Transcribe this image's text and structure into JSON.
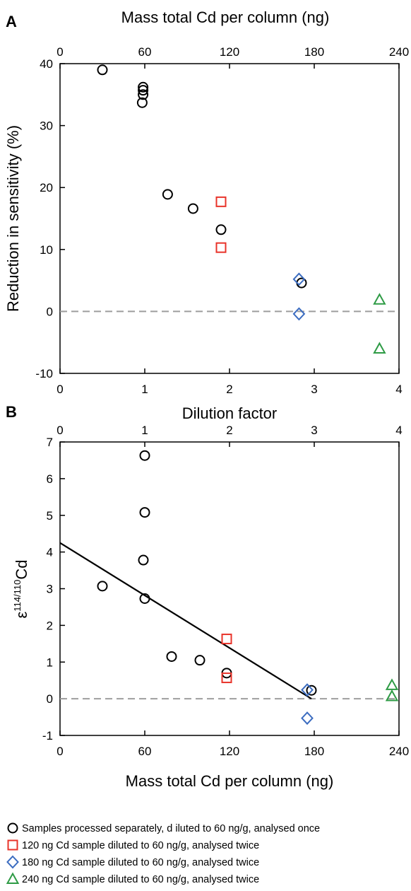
{
  "colors": {
    "separate": "#000000",
    "s120": "#e8332a",
    "s180": "#3b6cc0",
    "s240": "#2e9b45",
    "zero_line": "#9e9e9e",
    "fit_line": "#000000"
  },
  "legend": [
    {
      "key": "separate",
      "shape": "circle",
      "label": "Samples processed separately, d iluted to 60 ng/g, analysed once"
    },
    {
      "key": "s120",
      "shape": "square",
      "label": "120 ng Cd sample diluted to 60  ng/g, analysed twice"
    },
    {
      "key": "s180",
      "shape": "diamond",
      "label": "180 ng Cd sample diluted to 60  ng/g, analysed twice"
    },
    {
      "key": "s240",
      "shape": "triangle",
      "label": "240 ng Cd sample diluted to 60  ng/g, analysed twice"
    }
  ],
  "chart_data": [
    {
      "panel": "A",
      "type": "scatter",
      "xlabel": "Dilution factor",
      "x_ticks": [
        "0",
        "1",
        "2",
        "3",
        "4"
      ],
      "xlim": [
        0,
        4
      ],
      "x2label": "Mass total Cd per column (ng)",
      "x2_ticks": [
        "0",
        "60",
        "120",
        "180",
        "240"
      ],
      "x2lim": [
        0,
        240
      ],
      "ylabel": "Reduction in sensitivity (%)",
      "y_ticks": [
        "-10",
        "0",
        "10",
        "20",
        "30",
        "40"
      ],
      "ylim": [
        -10,
        40
      ],
      "reference_line_y": 0,
      "series": [
        {
          "key": "separate",
          "shape": "circle",
          "points": [
            [
              0.5,
              39.0
            ],
            [
              0.97,
              33.7
            ],
            [
              0.98,
              35.0
            ],
            [
              0.98,
              35.7
            ],
            [
              0.98,
              36.2
            ],
            [
              1.27,
              18.9
            ],
            [
              1.57,
              16.6
            ],
            [
              1.9,
              13.2
            ],
            [
              2.85,
              4.6
            ]
          ]
        },
        {
          "key": "s120",
          "shape": "square",
          "points": [
            [
              1.9,
              17.7
            ],
            [
              1.9,
              10.3
            ]
          ]
        },
        {
          "key": "s180",
          "shape": "diamond",
          "points": [
            [
              2.82,
              5.2
            ],
            [
              2.82,
              -0.4
            ]
          ]
        },
        {
          "key": "s240",
          "shape": "triangle",
          "points": [
            [
              3.77,
              1.9
            ],
            [
              3.77,
              -6.0
            ]
          ]
        }
      ]
    },
    {
      "panel": "B",
      "type": "scatter",
      "xlabel": "Mass total Cd per column (ng)",
      "x_ticks": [
        "0",
        "60",
        "120",
        "180",
        "240"
      ],
      "xlim": [
        0,
        240
      ],
      "x2label": "Dilution factor",
      "x2_ticks": [
        "0",
        "1",
        "2",
        "3",
        "4"
      ],
      "x2lim": [
        0,
        4
      ],
      "ylabel": "ε114/110Cd",
      "y_ticks": [
        "-1",
        "0",
        "1",
        "2",
        "3",
        "4",
        "5",
        "6",
        "7"
      ],
      "ylim": [
        -1,
        7
      ],
      "reference_line_y": 0,
      "fit_line": [
        [
          0,
          4.25
        ],
        [
          178,
          0.0
        ]
      ],
      "series": [
        {
          "key": "separate",
          "shape": "circle",
          "points": [
            [
              30,
              3.07
            ],
            [
              59,
              3.78
            ],
            [
              60,
              2.73
            ],
            [
              60,
              5.08
            ],
            [
              60,
              6.63
            ],
            [
              79,
              1.15
            ],
            [
              99,
              1.05
            ],
            [
              118,
              0.7
            ],
            [
              178,
              0.23
            ]
          ]
        },
        {
          "key": "s120",
          "shape": "square",
          "points": [
            [
              118,
              1.63
            ],
            [
              118,
              0.57
            ]
          ]
        },
        {
          "key": "s180",
          "shape": "diamond",
          "points": [
            [
              175,
              0.24
            ],
            [
              175,
              -0.53
            ]
          ]
        },
        {
          "key": "s240",
          "shape": "triangle",
          "points": [
            [
              235,
              0.37
            ],
            [
              235,
              0.07
            ]
          ]
        }
      ]
    }
  ],
  "panel_labels": [
    "A",
    "B"
  ],
  "ylabel_b_parts": {
    "prefix": "ε",
    "sup": "114/110",
    "suffix": "Cd"
  }
}
